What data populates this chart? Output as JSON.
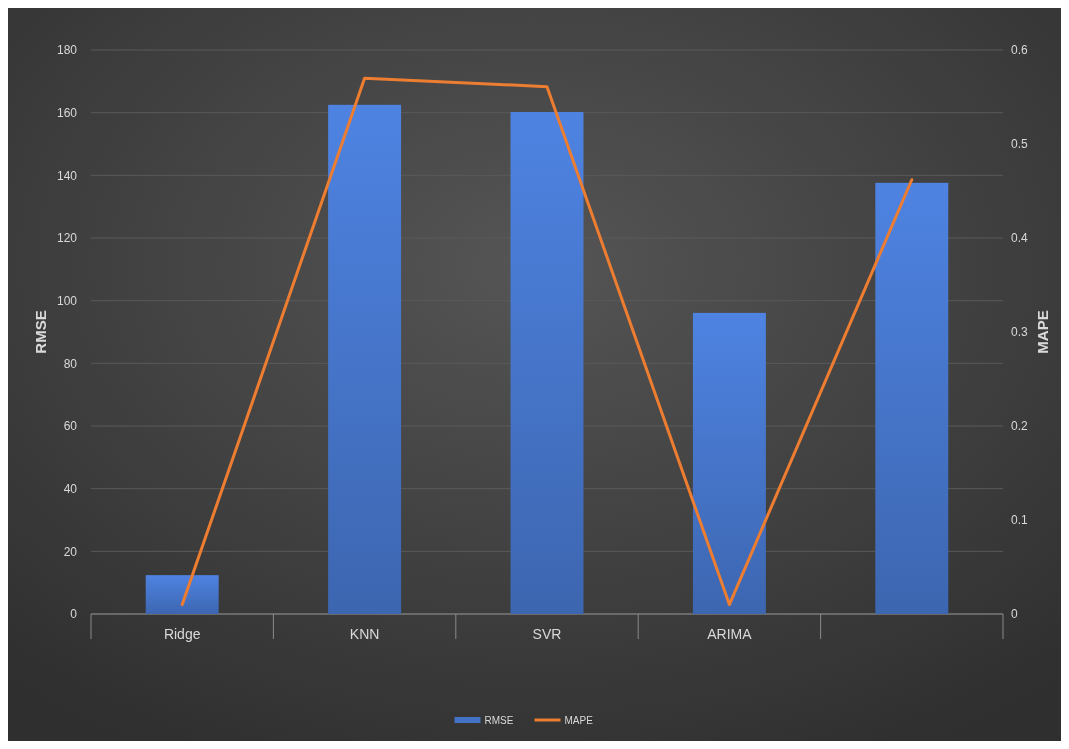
{
  "chart_data": {
    "type": "bar",
    "categories": [
      "Ridge",
      "KNN",
      "SVR",
      "ARIMA",
      null
    ],
    "series": [
      {
        "name": "RMSE",
        "color": "#4472c4",
        "values": [
          12.4,
          162.5,
          160.2,
          96.1,
          137.6
        ]
      },
      {
        "name": "MAPE",
        "type": "line",
        "axis": "y2",
        "color": "#ed7d31",
        "values": [
          0.01,
          0.57,
          0.561,
          0.01,
          0.462
        ]
      }
    ],
    "ylabel": "RMSE",
    "y2label": "MAPE",
    "ylim": [
      0,
      180
    ],
    "yticks": [
      0,
      20,
      40,
      60,
      80,
      100,
      120,
      140,
      160,
      180
    ],
    "y2lim": [
      0,
      0.6
    ],
    "y2ticks": [
      0,
      0.1,
      0.2,
      0.3,
      0.4,
      0.5,
      0.6
    ],
    "grid": "y",
    "legend": "bottom"
  }
}
